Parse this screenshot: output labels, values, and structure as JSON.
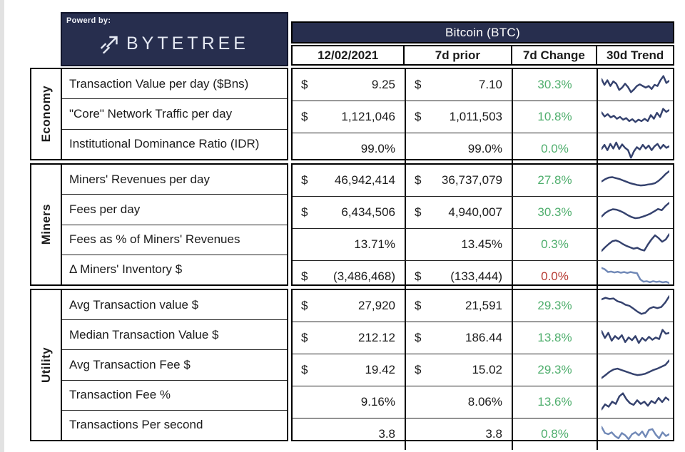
{
  "header": {
    "powered_by": "Powerd by:",
    "brand": "BYTETREE",
    "asset_title": "Bitcoin (BTC)",
    "columns": [
      "12/02/2021",
      "7d prior",
      "7d Change",
      "30d Trend"
    ]
  },
  "colors": {
    "navy": "#272e4e",
    "green": "#4fae6d",
    "red": "#b63a32",
    "spark_navy": "#35426e",
    "spark_light": "#7189b7"
  },
  "groups": [
    {
      "label": "Economy",
      "rows": [
        {
          "metric": "Transaction Value per day ($Bns)",
          "cs": "$",
          "cur": "9.25",
          "ps": "$",
          "prior": "7.10",
          "change": "30.3%",
          "change_color": "#4fae6d",
          "trend_color": "#35426e",
          "trend": [
            0.25,
            0.5,
            0.3,
            0.55,
            0.35,
            0.45,
            0.72,
            0.62,
            0.45,
            0.6,
            0.82,
            0.7,
            0.55,
            0.48,
            0.55,
            0.62,
            0.55,
            0.68,
            0.5,
            0.55,
            0.3,
            0.12,
            0.42,
            0.32
          ]
        },
        {
          "metric": "\"Core\" Network Traffic per day",
          "cs": "$",
          "cur": "1,121,046",
          "ps": "$",
          "prior": "1,011,503",
          "change": "10.8%",
          "change_color": "#4fae6d",
          "trend_color": "#35426e",
          "trend": [
            0.3,
            0.48,
            0.38,
            0.52,
            0.45,
            0.58,
            0.5,
            0.62,
            0.55,
            0.68,
            0.6,
            0.72,
            0.62,
            0.68,
            0.58,
            0.68,
            0.42,
            0.58,
            0.32,
            0.5,
            0.15,
            0.28,
            0.2
          ]
        },
        {
          "metric": "Institutional Dominance Ratio (IDR)",
          "cs": "",
          "cur": "99.0%",
          "ps": "",
          "prior": "99.0%",
          "change": "0.0%",
          "change_color": "#4fae6d",
          "trend_color": "#35426e",
          "trend": [
            0.5,
            0.32,
            0.55,
            0.28,
            0.48,
            0.22,
            0.5,
            0.3,
            0.45,
            0.55,
            0.88,
            0.6,
            0.42,
            0.52,
            0.32,
            0.48,
            0.35,
            0.55,
            0.38,
            0.28,
            0.48,
            0.32,
            0.45,
            0.38
          ]
        }
      ]
    },
    {
      "label": "Miners",
      "rows": [
        {
          "metric": "Miners' Revenues per day",
          "cs": "$",
          "cur": "46,942,414",
          "ps": "$",
          "prior": "36,737,079",
          "change": "27.8%",
          "change_color": "#4fae6d",
          "trend_color": "#35426e",
          "trend": [
            0.55,
            0.45,
            0.38,
            0.36,
            0.4,
            0.44,
            0.5,
            0.56,
            0.62,
            0.66,
            0.7,
            0.72,
            0.71,
            0.68,
            0.66,
            0.62,
            0.52,
            0.38,
            0.22,
            0.1
          ]
        },
        {
          "metric": "Fees per day",
          "cs": "$",
          "cur": "6,434,506",
          "ps": "$",
          "prior": "4,940,007",
          "change": "30.3%",
          "change_color": "#4fae6d",
          "trend_color": "#35426e",
          "trend": [
            0.68,
            0.52,
            0.42,
            0.36,
            0.38,
            0.44,
            0.52,
            0.62,
            0.7,
            0.75,
            0.73,
            0.68,
            0.62,
            0.55,
            0.45,
            0.35,
            0.4,
            0.22,
            0.08
          ]
        },
        {
          "metric": "Fees as % of Miners' Revenues",
          "cs": "",
          "cur": "13.71%",
          "ps": "",
          "prior": "13.45%",
          "change": "0.3%",
          "change_color": "#4fae6d",
          "trend_color": "#35426e",
          "trend": [
            0.78,
            0.62,
            0.48,
            0.36,
            0.32,
            0.38,
            0.48,
            0.56,
            0.62,
            0.68,
            0.64,
            0.72,
            0.76,
            0.5,
            0.28,
            0.1,
            0.22,
            0.38,
            0.28,
            0.05
          ]
        },
        {
          "metric": "Δ Miners' Inventory $",
          "cs": "$",
          "cur": "(3,486,468)",
          "ps": "$",
          "prior": "(133,444)",
          "change": "0.0%",
          "change_color": "#b63a32",
          "trend_color": "#7189b7",
          "trend": [
            0.12,
            0.18,
            0.3,
            0.28,
            0.32,
            0.29,
            0.33,
            0.3,
            0.34,
            0.3,
            0.33,
            0.35,
            0.62,
            0.72,
            0.7,
            0.74,
            0.7,
            0.73,
            0.71,
            0.75,
            0.72,
            0.78
          ]
        }
      ]
    },
    {
      "label": "Utility",
      "rows": [
        {
          "metric": "Avg Transaction value $",
          "cs": "$",
          "cur": "27,920",
          "ps": "$",
          "prior": "21,591",
          "change": "29.3%",
          "change_color": "#4fae6d",
          "trend_color": "#35426e",
          "trend": [
            0.22,
            0.15,
            0.2,
            0.18,
            0.3,
            0.35,
            0.45,
            0.5,
            0.62,
            0.75,
            0.85,
            0.8,
            0.62,
            0.55,
            0.6,
            0.55,
            0.35,
            0.08
          ]
        },
        {
          "metric": "Median Transaction Value $",
          "cs": "$",
          "cur": "212.12",
          "ps": "$",
          "prior": "186.44",
          "change": "13.8%",
          "change_color": "#4fae6d",
          "trend_color": "#35426e",
          "trend": [
            0.2,
            0.5,
            0.28,
            0.62,
            0.42,
            0.55,
            0.38,
            0.68,
            0.48,
            0.6,
            0.42,
            0.72,
            0.5,
            0.62,
            0.45,
            0.58,
            0.48,
            0.55,
            0.15,
            0.32,
            0.28
          ]
        },
        {
          "metric": "Avg Transaction Fee $",
          "cs": "$",
          "cur": "19.42",
          "ps": "$",
          "prior": "15.02",
          "change": "29.3%",
          "change_color": "#4fae6d",
          "trend_color": "#35426e",
          "trend": [
            0.85,
            0.72,
            0.58,
            0.48,
            0.44,
            0.5,
            0.56,
            0.62,
            0.68,
            0.72,
            0.7,
            0.66,
            0.58,
            0.5,
            0.44,
            0.36,
            0.28,
            0.08
          ]
        },
        {
          "metric": "Transaction Fee %",
          "cs": "",
          "cur": "9.16%",
          "ps": "",
          "prior": "8.06%",
          "change": "13.6%",
          "change_color": "#4fae6d",
          "trend_color": "#35426e",
          "trend": [
            0.82,
            0.6,
            0.7,
            0.48,
            0.58,
            0.25,
            0.12,
            0.38,
            0.55,
            0.62,
            0.42,
            0.58,
            0.48,
            0.66,
            0.45,
            0.55,
            0.32,
            0.5,
            0.3,
            0.42
          ]
        },
        {
          "metric": "Transactions Per second",
          "cs": "",
          "cur": "3.8",
          "ps": "",
          "prior": "3.8",
          "change": "0.8%",
          "change_color": "#4fae6d",
          "trend_color": "#7189b7",
          "trend": [
            0.18,
            0.45,
            0.5,
            0.42,
            0.58,
            0.68,
            0.45,
            0.55,
            0.72,
            0.5,
            0.42,
            0.55,
            0.38,
            0.62,
            0.32,
            0.28,
            0.52,
            0.68,
            0.42,
            0.58,
            0.5
          ]
        }
      ]
    }
  ]
}
